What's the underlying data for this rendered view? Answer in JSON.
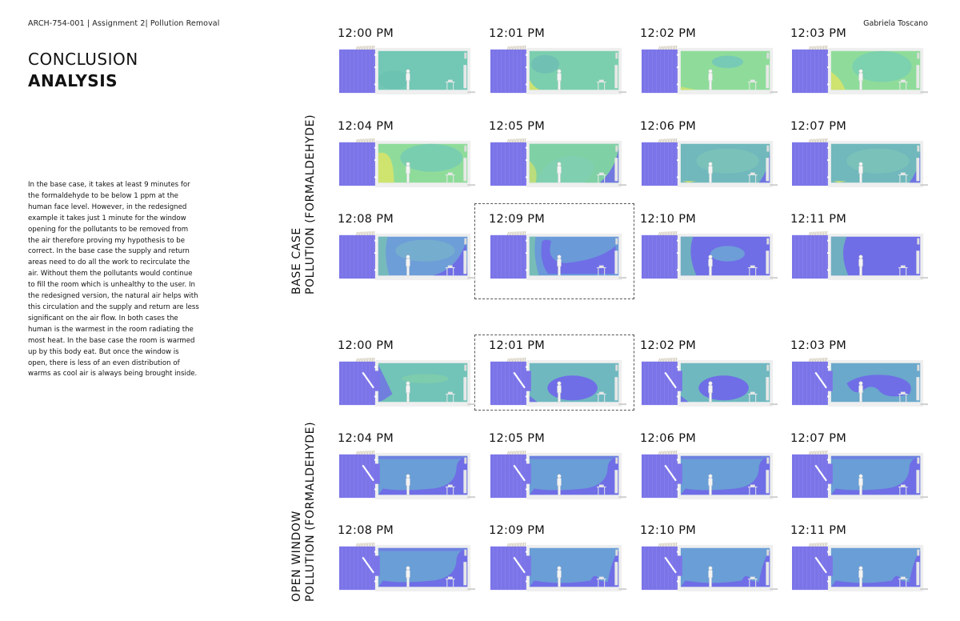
{
  "header": {
    "course": "ARCH-754-001  | Assignment 2|  Pollution Removal",
    "author": "Gabriela Toscano"
  },
  "title": {
    "line1": "CONCLUSION",
    "line2": "ANALYSIS"
  },
  "body_text": "In the base case, it takes at least 9 minutes for the formaldehyde to be below 1 ppm at the human face level. However, in the redesigned example it takes just 1 minute for the window opening for the pollutants to be removed from the air therefore proving my hypothesis to be correct. In the base case the supply and return areas need to do all the work to recirculate the air. Without them the pollutants would continue to fill the room which is unhealthy to the user. In the redesigned version, the natural air helps with this circulation and the supply and return are less significant on the air flow. In both cases the human is the warmest in the room radiating the most heat. In the base case the room is warmed up by this body eat. But once the window is open, there is less of an even distribution of warms as cool air is always being brought inside.",
  "colors": {
    "exterior_purple": "#7b74e8",
    "low_concentration_blue": "#6f6ee6",
    "mid_blue": "#6a9ad8",
    "teal": "#72c7b5",
    "green": "#8fdc9a",
    "yellow": "#d6e36a",
    "wall": "#efefef"
  },
  "sections": [
    {
      "id": "base-case",
      "label_line1": "BASE CASE",
      "label_line2": "POLLUTION (FORMALDEHYDE)",
      "window_open": false,
      "highlighted_index": 9,
      "frames": [
        {
          "time": "12:00 PM",
          "state": "teal"
        },
        {
          "time": "12:01 PM",
          "state": "teal-green"
        },
        {
          "time": "12:02 PM",
          "state": "green"
        },
        {
          "time": "12:03 PM",
          "state": "green-yellow"
        },
        {
          "time": "12:04 PM",
          "state": "yellow-green"
        },
        {
          "time": "12:05 PM",
          "state": "mixed"
        },
        {
          "time": "12:06 PM",
          "state": "teal-blue"
        },
        {
          "time": "12:07 PM",
          "state": "teal-blue"
        },
        {
          "time": "12:08 PM",
          "state": "blue"
        },
        {
          "time": "12:09 PM",
          "state": "blue-clearing"
        },
        {
          "time": "12:10 PM",
          "state": "purple-bubble"
        },
        {
          "time": "12:11 PM",
          "state": "purple"
        }
      ]
    },
    {
      "id": "open-window",
      "label_line1": "OPEN WINDOW",
      "label_line2": "POLLUTION (FORMALDEHYDE)",
      "window_open": true,
      "highlighted_index": 1,
      "frames": [
        {
          "time": "12:00 PM",
          "state": "ow-teal"
        },
        {
          "time": "12:01 PM",
          "state": "ow-bubble"
        },
        {
          "time": "12:02 PM",
          "state": "ow-bubble"
        },
        {
          "time": "12:03 PM",
          "state": "ow-swirl"
        },
        {
          "time": "12:04 PM",
          "state": "ow-blue"
        },
        {
          "time": "12:05 PM",
          "state": "ow-blue"
        },
        {
          "time": "12:06 PM",
          "state": "ow-blue"
        },
        {
          "time": "12:07 PM",
          "state": "ow-blue"
        },
        {
          "time": "12:08 PM",
          "state": "ow-blue"
        },
        {
          "time": "12:09 PM",
          "state": "ow-blue-2"
        },
        {
          "time": "12:10 PM",
          "state": "ow-blue-2"
        },
        {
          "time": "12:11 PM",
          "state": "ow-blue-2"
        }
      ]
    }
  ]
}
